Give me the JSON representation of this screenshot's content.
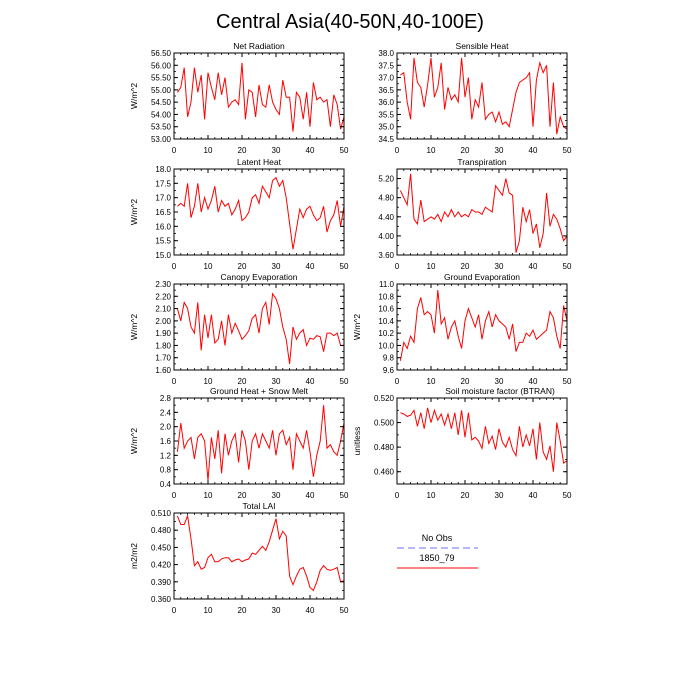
{
  "figure": {
    "title": "Central Asia(40-50N,40-100E)",
    "line_color": "#ff0000",
    "obs_color": "#8c8cff"
  },
  "legend": {
    "obs_label": "No Obs",
    "model_label": "1850_79"
  },
  "chart_data": [
    {
      "type": "line",
      "title": "Net Radiation",
      "ylabel": "W/m^2",
      "xlim": [
        0,
        50
      ],
      "ylim": [
        53.0,
        56.5
      ],
      "xticks": [
        0,
        10,
        20,
        30,
        40,
        50
      ],
      "yticks": [
        "53.00",
        "53.50",
        "54.00",
        "54.50",
        "55.00",
        "55.50",
        "56.00",
        "56.50"
      ],
      "x": [
        1,
        2,
        3,
        4,
        5,
        6,
        7,
        8,
        9,
        10,
        11,
        12,
        13,
        14,
        15,
        16,
        17,
        18,
        19,
        20,
        21,
        22,
        23,
        24,
        25,
        26,
        27,
        28,
        29,
        30,
        31,
        32,
        33,
        34,
        35,
        36,
        37,
        38,
        39,
        40,
        41,
        42,
        43,
        44,
        45,
        46,
        47,
        48,
        49,
        50
      ],
      "values": [
        54.9,
        55.1,
        55.9,
        53.9,
        54.5,
        55.9,
        54.9,
        55.6,
        53.8,
        55.7,
        55.1,
        54.6,
        55.7,
        54.8,
        55.5,
        54.3,
        54.5,
        54.6,
        54.4,
        56.1,
        53.8,
        55.0,
        54.9,
        53.9,
        55.2,
        54.4,
        54.3,
        55.2,
        54.5,
        54.2,
        54.0,
        55.4,
        54.7,
        54.7,
        53.3,
        54.9,
        54.7,
        53.8,
        54.9,
        53.5,
        55.3,
        54.6,
        54.7,
        54.5,
        54.6,
        53.5,
        54.8,
        54.4,
        53.4,
        53.9
      ]
    },
    {
      "type": "line",
      "title": "Sensible Heat",
      "ylabel": "",
      "xlim": [
        0,
        50
      ],
      "ylim": [
        34.5,
        38.0
      ],
      "xticks": [
        0,
        10,
        20,
        30,
        40,
        50
      ],
      "yticks": [
        "34.5",
        "35.0",
        "35.5",
        "36.0",
        "36.5",
        "37.0",
        "37.5",
        "38.0"
      ],
      "x": [
        1,
        2,
        3,
        4,
        5,
        6,
        7,
        8,
        9,
        10,
        11,
        12,
        13,
        14,
        15,
        16,
        17,
        18,
        19,
        20,
        21,
        22,
        23,
        24,
        25,
        26,
        27,
        28,
        29,
        30,
        31,
        32,
        33,
        34,
        35,
        36,
        37,
        38,
        39,
        40,
        41,
        42,
        43,
        44,
        45,
        46,
        47,
        48,
        49,
        50
      ],
      "values": [
        37.1,
        37.2,
        36.0,
        35.3,
        37.8,
        36.8,
        36.6,
        35.8,
        36.7,
        37.8,
        36.2,
        36.6,
        37.6,
        35.7,
        36.6,
        36.1,
        36.3,
        36.0,
        37.8,
        36.2,
        37.0,
        35.3,
        36.1,
        35.8,
        36.8,
        35.3,
        35.5,
        35.6,
        35.2,
        35.6,
        35.1,
        35.2,
        35.0,
        35.7,
        36.4,
        36.8,
        36.9,
        37.0,
        37.2,
        35.0,
        36.9,
        37.6,
        37.2,
        37.5,
        35.0,
        36.8,
        34.7,
        35.4,
        35.0,
        34.9
      ]
    },
    {
      "type": "line",
      "title": "Latent Heat",
      "ylabel": "W/m^2",
      "xlim": [
        0,
        50
      ],
      "ylim": [
        15.0,
        18.0
      ],
      "xticks": [
        0,
        10,
        20,
        30,
        40,
        50
      ],
      "yticks": [
        "15.0",
        "15.5",
        "16.0",
        "16.5",
        "17.0",
        "17.5",
        "18.0"
      ],
      "x": [
        1,
        2,
        3,
        4,
        5,
        6,
        7,
        8,
        9,
        10,
        11,
        12,
        13,
        14,
        15,
        16,
        17,
        18,
        19,
        20,
        21,
        22,
        23,
        24,
        25,
        26,
        27,
        28,
        29,
        30,
        31,
        32,
        33,
        34,
        35,
        36,
        37,
        38,
        39,
        40,
        41,
        42,
        43,
        44,
        45,
        46,
        47,
        48,
        49,
        50
      ],
      "values": [
        16.7,
        16.8,
        16.7,
        17.5,
        16.3,
        16.7,
        17.5,
        16.5,
        17.0,
        16.6,
        16.9,
        17.4,
        16.5,
        16.9,
        16.7,
        16.8,
        16.4,
        16.6,
        16.9,
        16.2,
        16.3,
        16.5,
        17.0,
        17.1,
        16.8,
        17.4,
        17.2,
        17.0,
        17.6,
        17.7,
        17.4,
        17.6,
        17.0,
        16.1,
        15.2,
        15.9,
        16.6,
        16.3,
        16.6,
        16.7,
        16.4,
        16.2,
        16.3,
        16.7,
        15.8,
        16.2,
        16.4,
        16.9,
        16.0,
        16.7
      ]
    },
    {
      "type": "line",
      "title": "Transpiration",
      "ylabel": "",
      "xlim": [
        0,
        50
      ],
      "ylim": [
        3.6,
        5.4
      ],
      "xticks": [
        0,
        10,
        20,
        30,
        40,
        50
      ],
      "yticks": [
        "3.60",
        "4.00",
        "4.40",
        "4.80",
        "5.20"
      ],
      "ytick_values": [
        3.6,
        4.0,
        4.4,
        4.8,
        5.2
      ],
      "x": [
        1,
        2,
        3,
        4,
        5,
        6,
        7,
        8,
        9,
        10,
        11,
        12,
        13,
        14,
        15,
        16,
        17,
        18,
        19,
        20,
        21,
        22,
        23,
        24,
        25,
        26,
        27,
        28,
        29,
        30,
        31,
        32,
        33,
        34,
        35,
        36,
        37,
        38,
        39,
        40,
        41,
        42,
        43,
        44,
        45,
        46,
        47,
        48,
        49,
        50
      ],
      "values": [
        4.95,
        4.8,
        4.65,
        5.3,
        4.35,
        4.25,
        4.75,
        4.3,
        4.35,
        4.4,
        4.35,
        4.45,
        4.3,
        4.5,
        4.4,
        4.55,
        4.4,
        4.5,
        4.4,
        4.45,
        4.4,
        4.55,
        4.5,
        4.5,
        4.45,
        4.6,
        4.55,
        4.5,
        5.05,
        4.95,
        4.85,
        5.2,
        4.9,
        4.85,
        3.65,
        3.9,
        4.6,
        4.3,
        4.55,
        4.05,
        4.25,
        3.75,
        4.05,
        4.9,
        4.2,
        4.45,
        4.35,
        4.15,
        3.9,
        4.0
      ]
    },
    {
      "type": "line",
      "title": "Canopy Evaporation",
      "ylabel": "W/m^2",
      "xlim": [
        0,
        50
      ],
      "ylim": [
        1.6,
        2.3
      ],
      "xticks": [
        0,
        10,
        20,
        30,
        40,
        50
      ],
      "yticks": [
        "1.60",
        "1.70",
        "1.80",
        "1.90",
        "2.00",
        "2.10",
        "2.20",
        "2.30"
      ],
      "x": [
        1,
        2,
        3,
        4,
        5,
        6,
        7,
        8,
        9,
        10,
        11,
        12,
        13,
        14,
        15,
        16,
        17,
        18,
        19,
        20,
        21,
        22,
        23,
        24,
        25,
        26,
        27,
        28,
        29,
        30,
        31,
        32,
        33,
        34,
        35,
        36,
        37,
        38,
        39,
        40,
        41,
        42,
        43,
        44,
        45,
        46,
        47,
        48,
        49,
        50
      ],
      "values": [
        2.1,
        2.0,
        2.15,
        2.1,
        1.95,
        1.9,
        2.15,
        1.76,
        2.05,
        1.86,
        2.05,
        1.82,
        1.85,
        2.0,
        1.8,
        2.05,
        1.9,
        1.98,
        1.92,
        1.85,
        1.88,
        1.92,
        2.02,
        2.05,
        1.9,
        2.1,
        2.15,
        1.97,
        2.22,
        2.18,
        2.1,
        1.95,
        1.85,
        1.65,
        1.95,
        1.85,
        1.9,
        1.93,
        1.8,
        1.86,
        1.85,
        1.88,
        1.87,
        1.75,
        1.9,
        1.9,
        1.88,
        1.9,
        1.8,
        1.8
      ]
    },
    {
      "type": "line",
      "title": "Ground Evaporation",
      "ylabel": "W/m^2",
      "xlim": [
        0,
        50
      ],
      "ylim": [
        9.6,
        11.0
      ],
      "xticks": [
        0,
        10,
        20,
        30,
        40,
        50
      ],
      "yticks": [
        "9.6",
        "9.8",
        "10.0",
        "10.2",
        "10.4",
        "10.6",
        "10.8",
        "11.0"
      ],
      "x": [
        1,
        2,
        3,
        4,
        5,
        6,
        7,
        8,
        9,
        10,
        11,
        12,
        13,
        14,
        15,
        16,
        17,
        18,
        19,
        20,
        21,
        22,
        23,
        24,
        25,
        26,
        27,
        28,
        29,
        30,
        31,
        32,
        33,
        34,
        35,
        36,
        37,
        38,
        39,
        40,
        41,
        42,
        43,
        44,
        45,
        46,
        47,
        48,
        49,
        50
      ],
      "values": [
        9.75,
        10.05,
        9.95,
        10.15,
        10.05,
        10.6,
        10.78,
        10.5,
        10.55,
        10.5,
        10.2,
        10.9,
        10.35,
        10.45,
        10.1,
        10.3,
        10.4,
        10.15,
        9.95,
        10.4,
        10.6,
        10.45,
        10.3,
        10.5,
        10.1,
        10.4,
        10.55,
        10.3,
        10.5,
        10.4,
        10.35,
        10.3,
        10.1,
        10.35,
        9.9,
        10.05,
        10.05,
        10.2,
        10.15,
        10.25,
        10.1,
        10.15,
        10.2,
        10.25,
        10.55,
        10.45,
        10.15,
        9.95,
        10.65,
        10.4
      ]
    },
    {
      "type": "line",
      "title": "Ground Heat + Snow Melt",
      "ylabel": "W/m^2",
      "xlim": [
        0,
        50
      ],
      "ylim": [
        0.4,
        2.8
      ],
      "xticks": [
        0,
        10,
        20,
        30,
        40,
        50
      ],
      "yticks": [
        "0.4",
        "0.8",
        "1.2",
        "1.6",
        "2.0",
        "2.4",
        "2.8"
      ],
      "x": [
        1,
        2,
        3,
        4,
        5,
        6,
        7,
        8,
        9,
        10,
        11,
        12,
        13,
        14,
        15,
        16,
        17,
        18,
        19,
        20,
        21,
        22,
        23,
        24,
        25,
        26,
        27,
        28,
        29,
        30,
        31,
        32,
        33,
        34,
        35,
        36,
        37,
        38,
        39,
        40,
        41,
        42,
        43,
        44,
        45,
        46,
        47,
        48,
        49,
        50
      ],
      "values": [
        1.3,
        2.1,
        1.4,
        1.6,
        1.7,
        1.1,
        1.7,
        1.8,
        1.6,
        0.5,
        1.7,
        1.1,
        1.9,
        0.7,
        1.8,
        1.2,
        1.6,
        1.8,
        1.0,
        1.9,
        1.6,
        0.8,
        1.6,
        1.8,
        1.4,
        1.8,
        1.6,
        1.4,
        1.9,
        1.2,
        1.8,
        1.9,
        1.5,
        1.7,
        0.8,
        1.8,
        1.6,
        1.4,
        1.9,
        1.3,
        0.6,
        1.2,
        1.6,
        2.6,
        1.4,
        1.5,
        1.3,
        1.2,
        1.6,
        2.1
      ]
    },
    {
      "type": "line",
      "title": "Soil moisture factor (BTRAN)",
      "ylabel": "unitless",
      "xlim": [
        0,
        50
      ],
      "ylim": [
        0.45,
        0.52
      ],
      "xticks": [
        0,
        10,
        20,
        30,
        40,
        50
      ],
      "yticks": [
        "0.460",
        "0.480",
        "0.500",
        "0.520"
      ],
      "ytick_values": [
        0.46,
        0.48,
        0.5,
        0.52
      ],
      "x": [
        1,
        2,
        3,
        4,
        5,
        6,
        7,
        8,
        9,
        10,
        11,
        12,
        13,
        14,
        15,
        16,
        17,
        18,
        19,
        20,
        21,
        22,
        23,
        24,
        25,
        26,
        27,
        28,
        29,
        30,
        31,
        32,
        33,
        34,
        35,
        36,
        37,
        38,
        39,
        40,
        41,
        42,
        43,
        44,
        45,
        46,
        47,
        48,
        49,
        50
      ],
      "values": [
        0.508,
        0.507,
        0.505,
        0.506,
        0.51,
        0.497,
        0.508,
        0.495,
        0.512,
        0.5,
        0.51,
        0.502,
        0.507,
        0.498,
        0.507,
        0.495,
        0.508,
        0.49,
        0.51,
        0.488,
        0.508,
        0.486,
        0.488,
        0.485,
        0.479,
        0.497,
        0.483,
        0.489,
        0.478,
        0.495,
        0.484,
        0.48,
        0.488,
        0.478,
        0.473,
        0.497,
        0.48,
        0.49,
        0.481,
        0.495,
        0.47,
        0.5,
        0.476,
        0.47,
        0.481,
        0.46,
        0.5,
        0.485,
        0.467,
        0.469
      ]
    },
    {
      "type": "line",
      "title": "Total LAI",
      "ylabel": "m2/m2",
      "xlim": [
        0,
        50
      ],
      "ylim": [
        0.36,
        0.51
      ],
      "xticks": [
        0,
        10,
        20,
        30,
        40,
        50
      ],
      "yticks": [
        "0.360",
        "0.390",
        "0.420",
        "0.450",
        "0.480",
        "0.510"
      ],
      "x": [
        1,
        2,
        3,
        4,
        5,
        6,
        7,
        8,
        9,
        10,
        11,
        12,
        13,
        14,
        15,
        16,
        17,
        18,
        19,
        20,
        21,
        22,
        23,
        24,
        25,
        26,
        27,
        28,
        29,
        30,
        31,
        32,
        33,
        34,
        35,
        36,
        37,
        38,
        39,
        40,
        41,
        42,
        43,
        44,
        45,
        46,
        47,
        48,
        49,
        50
      ],
      "values": [
        0.505,
        0.49,
        0.49,
        0.505,
        0.465,
        0.418,
        0.425,
        0.412,
        0.415,
        0.432,
        0.438,
        0.425,
        0.425,
        0.43,
        0.432,
        0.432,
        0.425,
        0.428,
        0.43,
        0.425,
        0.428,
        0.43,
        0.44,
        0.438,
        0.445,
        0.452,
        0.445,
        0.46,
        0.48,
        0.5,
        0.465,
        0.478,
        0.47,
        0.4,
        0.385,
        0.4,
        0.412,
        0.415,
        0.4,
        0.38,
        0.375,
        0.39,
        0.41,
        0.418,
        0.412,
        0.41,
        0.412,
        0.415,
        0.39,
        0.392
      ]
    }
  ]
}
